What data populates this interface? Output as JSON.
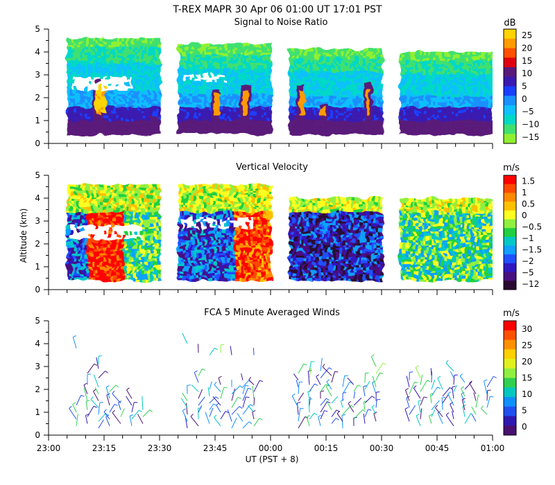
{
  "header": {
    "title": "T-REX   MAPR 30 Apr 06   01:00 UT   17:01   PST"
  },
  "chart_data": [
    {
      "type": "heatmap",
      "title": "Signal to Noise Ratio",
      "ylabel": "",
      "ylim": [
        0,
        5
      ],
      "yticks": [
        0,
        1,
        2,
        3,
        4,
        5
      ],
      "xrange_min": [
        0,
        120
      ],
      "colorbar": {
        "units": "dB",
        "labels": [
          "25",
          "20",
          "15",
          "10",
          "5",
          "0",
          "−5",
          "−10",
          "−15"
        ],
        "colors": [
          "#ffd400",
          "#ff9a00",
          "#ff5000",
          "#e00010",
          "#5a1a7a",
          "#3a1ab0",
          "#1a40ff",
          "#1a90ff",
          "#10c0ff",
          "#00d8c8",
          "#40e070",
          "#90f030"
        ]
      },
      "segments_min": [
        [
          5,
          30
        ],
        [
          35,
          60
        ],
        [
          65,
          90
        ],
        [
          95,
          120
        ]
      ],
      "top_km": [
        4.6,
        4.3,
        4.1,
        4.0
      ],
      "base_km": 0.4
    },
    {
      "type": "heatmap",
      "title": "Vertical Velocity",
      "ylabel": "Altitude (km)",
      "ylim": [
        0,
        5
      ],
      "yticks": [
        0,
        1,
        2,
        3,
        4,
        5
      ],
      "colorbar": {
        "units": "m/s",
        "labels": [
          "1.5",
          "1",
          "0.5",
          "0",
          "−0.5",
          "−1",
          "−1.5",
          "−2",
          "−5",
          "−12"
        ],
        "colors": [
          "#ff0000",
          "#ff4a00",
          "#ff8a00",
          "#ffc000",
          "#ffff20",
          "#90f040",
          "#20d040",
          "#00c8c8",
          "#10a0ff",
          "#2050ff",
          "#3018c0",
          "#4a1080",
          "#2a0a30"
        ]
      },
      "segments_min": [
        [
          5,
          30
        ],
        [
          35,
          60
        ],
        [
          65,
          90
        ],
        [
          95,
          120
        ]
      ],
      "top_km": [
        4.6,
        4.5,
        4.0,
        4.0
      ],
      "base_km": 0.4
    },
    {
      "type": "scatter",
      "title": "FCA 5 Minute Averaged Winds",
      "xlabel": "UT  (PST + 8)",
      "ylim": [
        0,
        5
      ],
      "yticks": [
        0,
        1,
        2,
        3,
        4,
        5
      ],
      "xlim_min": [
        0,
        120
      ],
      "xticks": [
        "23:00",
        "23:15",
        "23:30",
        "23:45",
        "00:00",
        "00:15",
        "00:30",
        "00:45",
        "01:00"
      ],
      "colorbar": {
        "units": "m/s",
        "labels": [
          "30",
          "25",
          "20",
          "15",
          "10",
          "5",
          "0"
        ],
        "colors": [
          "#ff0000",
          "#ff5000",
          "#ff9000",
          "#ffd000",
          "#e0f020",
          "#90f040",
          "#30d050",
          "#00c8c0",
          "#1090ff",
          "#2050f0",
          "#3018b0",
          "#4a1070"
        ]
      },
      "wind_profiles": [
        {
          "t": 7.5,
          "alts": [
            0.4,
            0.7,
            1.0,
            1.3,
            3.8
          ]
        },
        {
          "t": 10.5,
          "alts": [
            0.5,
            0.8,
            1.1,
            1.5,
            1.8,
            2.2,
            2.7
          ]
        },
        {
          "t": 13.5,
          "alts": [
            0.3,
            0.6,
            0.9,
            1.2,
            1.5,
            1.8,
            2.1,
            2.5,
            2.9,
            3.1
          ]
        },
        {
          "t": 16.5,
          "alts": [
            0.4,
            0.7,
            1.0,
            1.3,
            1.6,
            1.9
          ]
        },
        {
          "t": 19.5,
          "alts": [
            0.5,
            0.8,
            1.1,
            1.4
          ]
        },
        {
          "t": 22.5,
          "alts": [
            0.4,
            0.7,
            1.0,
            1.3,
            1.6
          ]
        },
        {
          "t": 25.5,
          "alts": [
            0.5,
            0.8,
            1.1
          ]
        },
        {
          "t": 37.5,
          "alts": [
            0.3,
            0.6,
            0.9,
            1.2,
            1.5,
            1.8,
            4.0
          ]
        },
        {
          "t": 40.5,
          "alts": [
            0.4,
            0.7,
            1.0,
            1.3,
            1.6,
            1.9,
            2.3,
            2.6,
            3.6
          ]
        },
        {
          "t": 43.5,
          "alts": [
            0.5,
            0.8,
            1.1,
            1.4,
            1.7,
            2.0,
            3.5
          ]
        },
        {
          "t": 46.5,
          "alts": [
            0.4,
            0.7,
            1.0,
            1.3,
            1.6,
            1.9,
            2.2,
            3.6
          ]
        },
        {
          "t": 49.5,
          "alts": [
            0.3,
            0.6,
            0.9,
            1.2,
            1.5,
            1.8,
            2.1,
            3.5
          ]
        },
        {
          "t": 52.5,
          "alts": [
            0.3,
            0.6,
            0.9,
            1.2,
            1.5,
            1.8,
            2.1,
            2.4
          ]
        },
        {
          "t": 55.5,
          "alts": [
            0.4,
            0.7,
            1.0,
            1.3,
            1.6,
            1.9,
            2.2,
            3.5
          ]
        },
        {
          "t": 67.5,
          "alts": [
            0.3,
            0.6,
            0.9,
            1.2,
            1.5,
            1.8,
            2.1,
            2.4,
            2.7
          ]
        },
        {
          "t": 70.5,
          "alts": [
            0.4,
            0.7,
            1.0,
            1.3,
            1.6,
            1.9,
            2.2,
            2.5,
            2.8
          ]
        },
        {
          "t": 73.5,
          "alts": [
            0.4,
            0.7,
            1.0,
            1.3,
            1.6,
            1.9,
            2.2,
            2.5,
            2.8
          ]
        },
        {
          "t": 76.5,
          "alts": [
            0.5,
            0.8,
            1.1,
            1.4,
            1.7,
            2.0,
            2.3,
            2.6
          ]
        },
        {
          "t": 79.5,
          "alts": [
            0.3,
            0.6,
            0.9,
            1.2,
            1.5,
            1.8,
            2.1
          ]
        },
        {
          "t": 82.5,
          "alts": [
            0.4,
            0.7,
            1.0,
            1.3,
            1.6,
            1.9,
            2.2
          ]
        },
        {
          "t": 85.5,
          "alts": [
            0.5,
            0.8,
            1.1,
            1.4,
            1.7,
            2.0,
            2.3
          ]
        },
        {
          "t": 88.5,
          "alts": [
            0.6,
            0.9,
            1.2,
            1.5,
            1.8,
            2.1,
            2.4,
            2.7,
            3.0
          ]
        },
        {
          "t": 97.5,
          "alts": [
            0.6,
            0.9,
            1.2,
            1.5,
            1.8,
            2.1,
            2.4
          ]
        },
        {
          "t": 100.5,
          "alts": [
            0.4,
            0.7,
            1.0,
            1.3,
            1.6,
            1.9,
            2.2,
            2.5
          ]
        },
        {
          "t": 103.5,
          "alts": [
            0.5,
            0.8,
            1.1,
            1.4,
            1.7,
            2.0,
            2.3,
            2.6
          ]
        },
        {
          "t": 106.5,
          "alts": [
            0.5,
            0.8,
            1.1,
            1.4,
            1.7,
            2.0
          ]
        },
        {
          "t": 109.5,
          "alts": [
            0.4,
            0.7,
            1.0,
            1.3,
            1.6,
            1.9,
            2.2,
            2.5,
            2.8
          ]
        },
        {
          "t": 112.5,
          "alts": [
            0.5,
            0.8,
            1.1,
            1.4,
            1.7,
            2.0,
            2.3
          ]
        },
        {
          "t": 115.5,
          "alts": [
            0.6,
            0.9,
            1.2,
            1.5,
            1.8
          ]
        },
        {
          "t": 118.5,
          "alts": [
            0.9,
            1.2,
            1.5,
            1.8,
            2.1
          ]
        }
      ]
    }
  ]
}
